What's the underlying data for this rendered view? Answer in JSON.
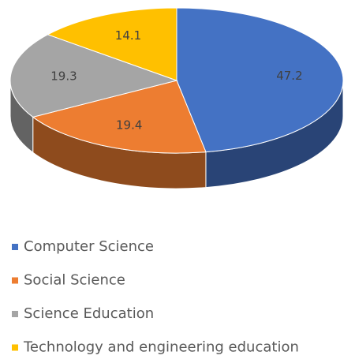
{
  "chart_data": {
    "type": "pie",
    "categories": [
      "Computer Science",
      "Social Science",
      "Science Education",
      "Technology and engineering education"
    ],
    "values": [
      47.2,
      19.4,
      19.3,
      14.1
    ],
    "colors": [
      "#4472c4",
      "#ed7d31",
      "#a5a5a5",
      "#ffc000"
    ],
    "legend": "bottom"
  }
}
